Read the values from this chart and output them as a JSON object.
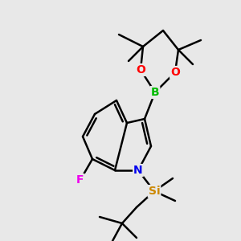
{
  "background_color": "#e8e8e8",
  "bond_color": "#000000",
  "bond_width": 1.8,
  "atom_colors": {
    "B": "#00bb00",
    "O": "#ff0000",
    "N": "#0000ee",
    "F": "#ee00ee",
    "Si": "#cc8800"
  },
  "figsize": [
    3.0,
    3.0
  ],
  "dpi": 100
}
